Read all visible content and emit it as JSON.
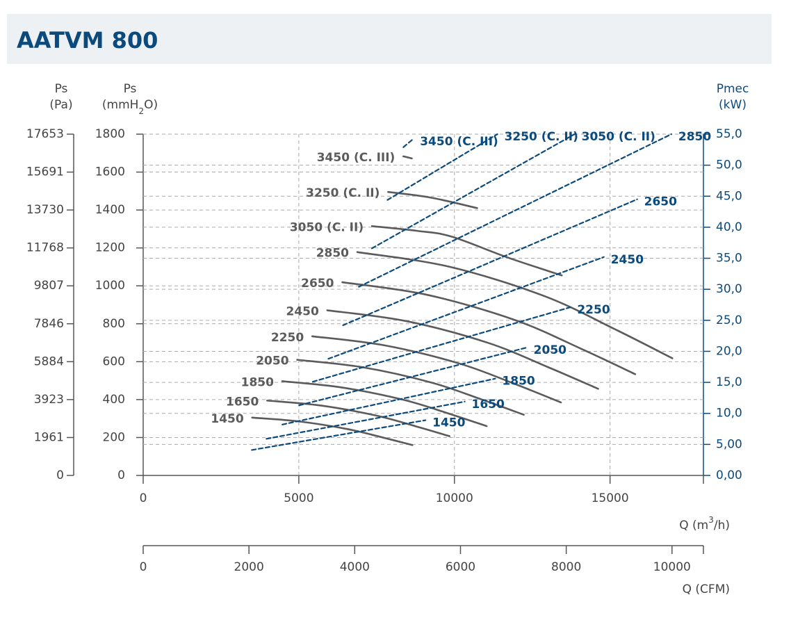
{
  "chart_data": {
    "type": "line",
    "title": "AATVM 800",
    "x_label_parts": [
      "Q (m",
      "3",
      "/h)"
    ],
    "x2_label": "Q (CFM)",
    "y_label": "Ps",
    "y_unit_parts": [
      "(mmH",
      "2",
      "O)"
    ],
    "y3_label": "Ps",
    "y3_unit": "(Pa)",
    "y2_label": "Pmec",
    "y2_unit": "(kW)",
    "xlim": [
      0,
      18000
    ],
    "xticks": [
      0,
      5000,
      10000,
      15000
    ],
    "x2lim": [
      0,
      10594
    ],
    "x2ticks": [
      0,
      2000,
      4000,
      6000,
      8000,
      10000
    ],
    "ylim": [
      0,
      1800
    ],
    "yticks": [
      0,
      200,
      400,
      600,
      800,
      1000,
      1200,
      1400,
      1600,
      1800
    ],
    "y3lim": [
      0,
      17653
    ],
    "y3ticks": [
      0,
      1961,
      3923,
      5884,
      7846,
      9807,
      11768,
      13730,
      15691,
      17653
    ],
    "y2lim": [
      0,
      55
    ],
    "y2ticks": [
      {
        "value": 0,
        "label": "0,00"
      },
      {
        "value": 5,
        "label": "5,00"
      },
      {
        "value": 10,
        "label": "10,0"
      },
      {
        "value": 15,
        "label": "15,0"
      },
      {
        "value": 20,
        "label": "20,0"
      },
      {
        "value": 25,
        "label": "25,0"
      },
      {
        "value": 30,
        "label": "30,0"
      },
      {
        "value": 35,
        "label": "35,0"
      },
      {
        "value": 40,
        "label": "40,0"
      },
      {
        "value": 45,
        "label": "45,0"
      },
      {
        "value": 50,
        "label": "50,0"
      },
      {
        "value": 55,
        "label": "55,0"
      }
    ],
    "grid": true,
    "series": [
      {
        "name": "1450",
        "color": "#5b5b5b",
        "x": [
          3500,
          5000,
          6550,
          7700,
          8650
        ],
        "values": [
          305,
          285,
          245,
          200,
          160
        ]
      },
      {
        "name": "1650",
        "color": "#5b5b5b",
        "x": [
          3983,
          5690,
          7453,
          8762,
          9843
        ],
        "values": [
          395,
          369,
          317,
          259,
          207
        ]
      },
      {
        "name": "1850",
        "color": "#5b5b5b",
        "x": [
          4466,
          6379,
          8357,
          9824,
          11036
        ],
        "values": [
          497,
          464,
          399,
          326,
          260
        ]
      },
      {
        "name": "2050",
        "color": "#5b5b5b",
        "x": [
          4948,
          7069,
          9260,
          10886,
          12229
        ],
        "values": [
          610,
          570,
          490,
          400,
          320
        ]
      },
      {
        "name": "2250",
        "color": "#5b5b5b",
        "x": [
          5431,
          7759,
          10164,
          11948,
          13422
        ],
        "values": [
          734,
          686,
          590,
          482,
          385
        ]
      },
      {
        "name": "2450",
        "color": "#5b5b5b",
        "x": [
          5914,
          8448,
          11067,
          13010,
          14616
        ],
        "values": [
          871,
          814,
          700,
          571,
          457
        ]
      },
      {
        "name": "2650",
        "color": "#5b5b5b",
        "x": [
          6397,
          9138,
          11971,
          14073,
          15809
        ],
        "values": [
          1019,
          952,
          818,
          668,
          534
        ]
      },
      {
        "name": "2850",
        "color": "#5b5b5b",
        "x": [
          6879,
          9828,
          12874,
          15134,
          17002
        ],
        "values": [
          1178,
          1101,
          947,
          773,
          618
        ]
      },
      {
        "name": "3050 (C. II)",
        "color": "#5b5b5b",
        "x": [
          7350,
          8800,
          9900,
          11700,
          13450
        ],
        "values": [
          1315,
          1290,
          1260,
          1150,
          1055
        ]
      },
      {
        "name": "3250 (C. II)",
        "color": "#5b5b5b",
        "x": [
          7870,
          9250,
          10730
        ],
        "values": [
          1495,
          1465,
          1410
        ]
      },
      {
        "name": "3450 (C. III)",
        "color": "#5b5b5b",
        "x": [
          8360,
          8630
        ],
        "values": [
          1683,
          1672
        ]
      },
      {
        "name": "1450",
        "color": "#0b4a7c",
        "axis": "y2",
        "dashed": true,
        "x": [
          3490,
          9070
        ],
        "values": [
          4.1,
          8.9
        ]
      },
      {
        "name": "1650",
        "color": "#0b4a7c",
        "axis": "y2",
        "dashed": true,
        "x": [
          3960,
          10330
        ],
        "values": [
          5.9,
          11.9
        ]
      },
      {
        "name": "1850",
        "color": "#0b4a7c",
        "axis": "y2",
        "dashed": true,
        "x": [
          4470,
          11310
        ],
        "values": [
          8.2,
          15.6
        ]
      },
      {
        "name": "2050",
        "color": "#0b4a7c",
        "axis": "y2",
        "dashed": true,
        "x": [
          5010,
          12320
        ],
        "values": [
          11.3,
          20.6
        ]
      },
      {
        "name": "2250",
        "color": "#0b4a7c",
        "axis": "y2",
        "dashed": true,
        "x": [
          5450,
          13720
        ],
        "values": [
          15.1,
          27.1
        ]
      },
      {
        "name": "2450",
        "color": "#0b4a7c",
        "axis": "y2",
        "dashed": true,
        "x": [
          5950,
          14800
        ],
        "values": [
          18.8,
          35.2
        ]
      },
      {
        "name": "2650",
        "color": "#0b4a7c",
        "axis": "y2",
        "dashed": true,
        "x": [
          6420,
          15870
        ],
        "values": [
          24.2,
          44.5
        ]
      },
      {
        "name": "2850",
        "color": "#0b4a7c",
        "axis": "y2",
        "dashed": true,
        "x": [
          6930,
          16970
        ],
        "values": [
          30.4,
          55
        ]
      },
      {
        "name": "3050 (C. II)",
        "color": "#0b4a7c",
        "axis": "y2",
        "dashed": true,
        "x": [
          7350,
          13860
        ],
        "values": [
          36.6,
          55
        ]
      },
      {
        "name": "3250 (C. II)",
        "color": "#0b4a7c",
        "axis": "y2",
        "dashed": true,
        "x": [
          7850,
          11380
        ],
        "values": [
          44.4,
          55
        ]
      },
      {
        "name": "3450 (C. III)",
        "color": "#0b4a7c",
        "axis": "y2",
        "dashed": true,
        "x": [
          8360,
          8670
        ],
        "values": [
          52.9,
          54.2
        ]
      }
    ]
  }
}
